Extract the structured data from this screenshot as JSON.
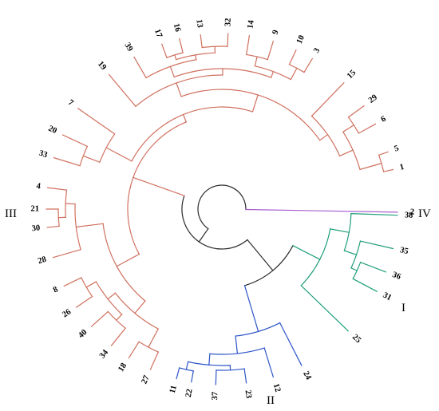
{
  "colors": {
    "cluster_I": "#1f9e7a",
    "cluster_II": "#2e55c9",
    "cluster_III": "#d0705f",
    "cluster_IV": "#a65fd0",
    "backbone": "#2b2b2b"
  },
  "cluster_labels": [
    {
      "id": "I",
      "text": "I",
      "color_key": "cluster_I"
    },
    {
      "id": "II",
      "text": "II",
      "color_key": "cluster_II"
    },
    {
      "id": "III",
      "text": "III",
      "color_key": "cluster_III"
    },
    {
      "id": "IV",
      "text": "IV",
      "color_key": "cluster_IV"
    }
  ],
  "leaves": [
    {
      "label": "1",
      "cluster": "III"
    },
    {
      "label": "5",
      "cluster": "III"
    },
    {
      "label": "6",
      "cluster": "III"
    },
    {
      "label": "29",
      "cluster": "III"
    },
    {
      "label": "15",
      "cluster": "III"
    },
    {
      "label": "3",
      "cluster": "III"
    },
    {
      "label": "10",
      "cluster": "III"
    },
    {
      "label": "9",
      "cluster": "III"
    },
    {
      "label": "14",
      "cluster": "III"
    },
    {
      "label": "32",
      "cluster": "III"
    },
    {
      "label": "13",
      "cluster": "III"
    },
    {
      "label": "16",
      "cluster": "III"
    },
    {
      "label": "17",
      "cluster": "III"
    },
    {
      "label": "39",
      "cluster": "III"
    },
    {
      "label": "19",
      "cluster": "III"
    },
    {
      "label": "7",
      "cluster": "III"
    },
    {
      "label": "20",
      "cluster": "III"
    },
    {
      "label": "33",
      "cluster": "III"
    },
    {
      "label": "4",
      "cluster": "III"
    },
    {
      "label": "21",
      "cluster": "III"
    },
    {
      "label": "30",
      "cluster": "III"
    },
    {
      "label": "28",
      "cluster": "III"
    },
    {
      "label": "8",
      "cluster": "III"
    },
    {
      "label": "26",
      "cluster": "III"
    },
    {
      "label": "40",
      "cluster": "III"
    },
    {
      "label": "34",
      "cluster": "III"
    },
    {
      "label": "18",
      "cluster": "III"
    },
    {
      "label": "27",
      "cluster": "III"
    },
    {
      "label": "11",
      "cluster": "II"
    },
    {
      "label": "22",
      "cluster": "II"
    },
    {
      "label": "37",
      "cluster": "II"
    },
    {
      "label": "23",
      "cluster": "II"
    },
    {
      "label": "12",
      "cluster": "II"
    },
    {
      "label": "24",
      "cluster": "II"
    },
    {
      "label": "25",
      "cluster": "I"
    },
    {
      "label": "31",
      "cluster": "I"
    },
    {
      "label": "36",
      "cluster": "I"
    },
    {
      "label": "35",
      "cluster": "I"
    },
    {
      "label": "38",
      "cluster": "I"
    },
    {
      "label": "2",
      "cluster": "IV"
    }
  ]
}
